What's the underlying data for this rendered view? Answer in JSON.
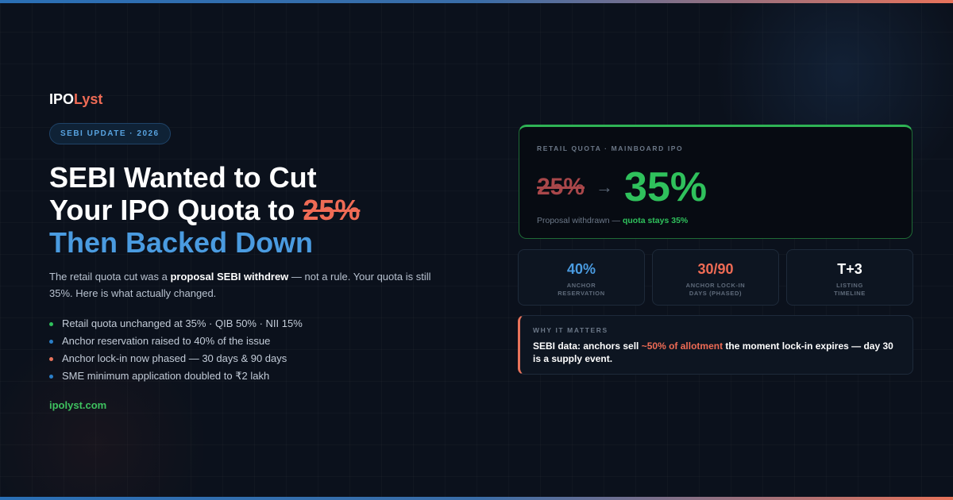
{
  "brand": {
    "part1": "IPO",
    "part2": "Lyst"
  },
  "badge": "SEBI UPDATE · 2026",
  "headline": {
    "line1": "SEBI Wanted to Cut",
    "line2": "Your IPO Quota to ",
    "line2_strike": "25%",
    "line3": "Then Backed Down"
  },
  "intro": {
    "before": "The retail quota cut was a ",
    "bold": "proposal SEBI withdrew",
    "after": " — not a rule. Your quota is still 35%. Here is what actually changed."
  },
  "bullets": [
    "Retail quota unchanged at 35% · QIB 50% · NII 15%",
    "Anchor reservation raised to 40% of the issue",
    "Anchor lock-in now phased — 30 days & 90 days",
    "SME minimum application doubled to ₹2 lakh"
  ],
  "url": "ipolyst.com",
  "quota_card": {
    "label": "RETAIL QUOTA · MAINBOARD IPO",
    "old": "25%",
    "arrow": "→",
    "new": "35%",
    "note": "Proposal withdrawn — ",
    "note_highlight": "quota stays 35%"
  },
  "stats": [
    {
      "value": "40%",
      "label": "ANCHOR RESERVATION"
    },
    {
      "value": "30/90",
      "label": "ANCHOR LOCK-IN DAYS (PHASED)"
    },
    {
      "value": "T+3",
      "label": "LISTING TIMELINE"
    }
  ],
  "why": {
    "label": "WHY IT MATTERS",
    "before": "SEBI data: anchors sell ",
    "highlight": "~50% of allotment",
    "after": " the moment lock-in expires — day 30 is a supply event."
  }
}
